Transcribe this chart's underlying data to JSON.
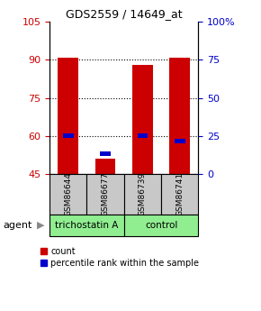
{
  "title": "GDS2559 / 14649_at",
  "samples": [
    "GSM86644",
    "GSM86677",
    "GSM86739",
    "GSM86741"
  ],
  "red_bars": [
    91,
    51,
    88,
    91
  ],
  "blue_bars": [
    60,
    53,
    60,
    58
  ],
  "ylim_left": [
    45,
    105
  ],
  "yticks_left": [
    45,
    60,
    75,
    90,
    105
  ],
  "yticks_right": [
    0,
    25,
    50,
    75,
    100
  ],
  "grid_lines": [
    60,
    75,
    90
  ],
  "bar_color_red": "#CC0000",
  "bar_color_blue": "#0000CC",
  "left_tick_color": "#CC0000",
  "right_tick_color": "#0000CC",
  "group_spans": [
    {
      "label": "trichostatin A",
      "start": 0,
      "end": 2,
      "color": "#90EE90"
    },
    {
      "label": "control",
      "start": 2,
      "end": 4,
      "color": "#90EE90"
    }
  ],
  "agent_label": "agent",
  "legend_count": "count",
  "legend_pct": "percentile rank within the sample",
  "sample_box_color": "#C8C8C8",
  "fig_width": 2.9,
  "fig_height": 3.45,
  "dpi": 100
}
